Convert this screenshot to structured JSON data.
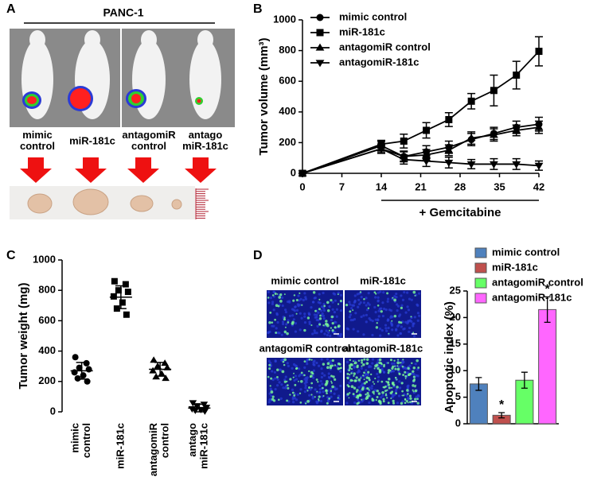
{
  "panel_labels": [
    "A",
    "B",
    "C",
    "D"
  ],
  "panel_a": {
    "title": "PANC-1",
    "labels": [
      "mimic\ncontrol",
      "miR-181c",
      "antagomiR\ncontrol",
      "antago\nmiR-181c"
    ]
  },
  "panel_d_images": {
    "labels": [
      "mimic control",
      "miR-181c",
      "antagomiR control",
      "antagomiR-181c"
    ]
  },
  "chart_data": [
    {
      "type": "line",
      "y_label": "Tumor volume (mm³)",
      "x": [
        0,
        14,
        18,
        22,
        26,
        30,
        34,
        38,
        42
      ],
      "xlim": [
        0,
        42
      ],
      "xticks": [
        0,
        7,
        14,
        21,
        28,
        35,
        42
      ],
      "ylim": [
        0,
        1000
      ],
      "yticks": [
        0,
        200,
        400,
        600,
        800,
        1000
      ],
      "legend": "upper left",
      "annotation": {
        "text": "+ Gemcitabine",
        "from": 14,
        "to": 42
      },
      "series": [
        {
          "name": "mimic control",
          "color": "#000000",
          "marker": "circle",
          "values": [
            0,
            180,
            110,
            140,
            170,
            220,
            260,
            300,
            320
          ],
          "errors": [
            0,
            30,
            35,
            40,
            40,
            40,
            40,
            40,
            45
          ]
        },
        {
          "name": "miR-181c",
          "color": "#000000",
          "marker": "square",
          "values": [
            0,
            190,
            210,
            280,
            350,
            470,
            540,
            640,
            795
          ],
          "errors": [
            0,
            25,
            45,
            50,
            45,
            50,
            100,
            90,
            95
          ]
        },
        {
          "name": "antagomiR control",
          "color": "#000000",
          "marker": "triangle-up",
          "values": [
            0,
            160,
            110,
            120,
            150,
            230,
            250,
            280,
            300
          ],
          "errors": [
            0,
            30,
            30,
            35,
            35,
            40,
            40,
            35,
            40
          ]
        },
        {
          "name": "antagomiR-181c",
          "color": "#000000",
          "marker": "triangle-down",
          "values": [
            0,
            160,
            90,
            80,
            70,
            60,
            60,
            60,
            50
          ],
          "errors": [
            0,
            25,
            30,
            35,
            35,
            30,
            35,
            35,
            30
          ]
        }
      ]
    },
    {
      "type": "dot",
      "y_label": "Tumor weight (mg)",
      "categories": [
        "mimic\ncontrol",
        "miR-181c",
        "antagomiR\ncontrol",
        "antago\nmiR-181c"
      ],
      "ylim": [
        0,
        1000
      ],
      "yticks": [
        0,
        200,
        400,
        600,
        800,
        1000
      ],
      "groups": [
        {
          "marker": "circle",
          "values": [
            360,
            320,
            290,
            280,
            260,
            240,
            220,
            200
          ],
          "mean": 270,
          "sd": 55
        },
        {
          "marker": "square",
          "values": [
            860,
            840,
            800,
            790,
            760,
            720,
            680,
            640
          ],
          "mean": 755,
          "sd": 75
        },
        {
          "marker": "triangle-up",
          "values": [
            340,
            320,
            300,
            290,
            270,
            250,
            230,
            220
          ],
          "mean": 280,
          "sd": 45
        },
        {
          "marker": "triangle-down",
          "values": [
            60,
            50,
            40,
            30,
            20,
            15,
            10,
            5
          ],
          "mean": 25,
          "sd": 25
        }
      ]
    },
    {
      "type": "bar",
      "y_label": "Apoptotic index (%)",
      "ylim": [
        0,
        25
      ],
      "yticks": [
        0,
        5,
        10,
        15,
        20,
        25
      ],
      "legend": "top",
      "series": [
        {
          "name": "mimic control",
          "color": "#4f81bd",
          "values": [
            7.5
          ],
          "errors": [
            1.2
          ]
        },
        {
          "name": "miR-181c",
          "color": "#c0504d",
          "values": [
            1.6
          ],
          "errors": [
            0.5
          ],
          "annotation": "*"
        },
        {
          "name": "antagomiR control",
          "color": "#66ff66",
          "values": [
            8.2
          ],
          "errors": [
            1.5
          ]
        },
        {
          "name": "antagomiR-181c",
          "color": "#ff66ff",
          "values": [
            21.5
          ],
          "errors": [
            2.4
          ],
          "annotation": "*"
        }
      ]
    }
  ]
}
